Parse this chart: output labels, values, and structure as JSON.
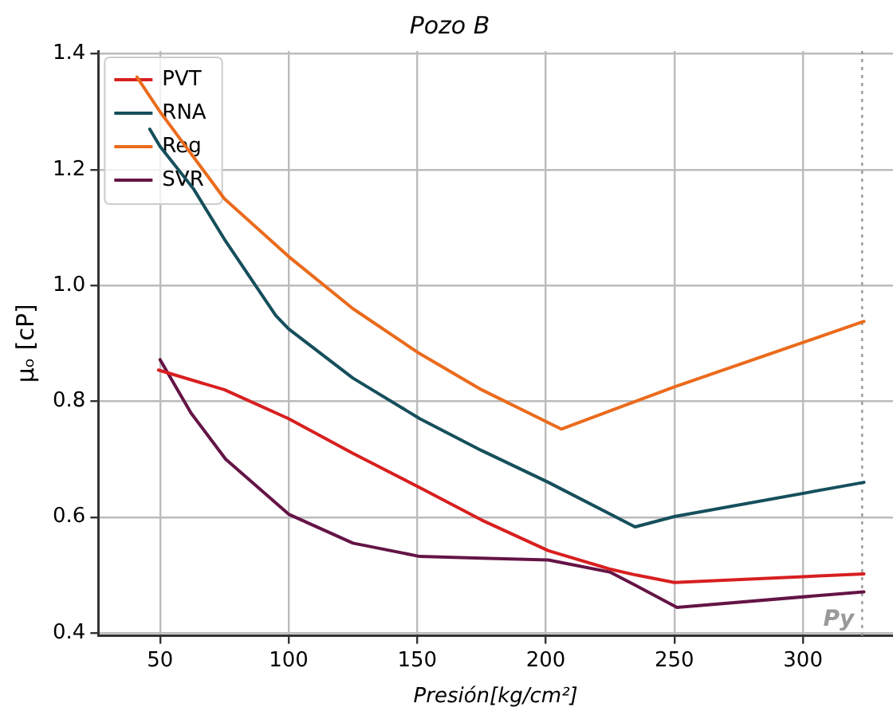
{
  "chart_data": {
    "type": "line",
    "title": "Pozo B",
    "xlabel": "Presión[kg/cm²]",
    "ylabel": "μₒ [cP]",
    "xlim": [
      26,
      335
    ],
    "ylim": [
      0.395,
      1.405
    ],
    "xticks": [
      50,
      100,
      150,
      200,
      250,
      300
    ],
    "yticks": [
      0.4,
      0.6,
      0.8,
      {
        "value": 1,
        "label": "1.0"
      },
      1.2,
      1.4
    ],
    "grid": true,
    "legend": "top left",
    "marker": "none",
    "line_style": "solid",
    "series": [
      {
        "name": "PVT",
        "color": "#d81f1f",
        "x": [
          49.4,
          75,
          100,
          125,
          151,
          175,
          201,
          225,
          235,
          250,
          323.7
        ],
        "values": [
          0.854,
          0.82,
          0.77,
          0.71,
          0.651,
          0.595,
          0.542,
          0.51,
          0.5,
          0.487,
          0.502
        ]
      },
      {
        "name": "RNA",
        "color": "#164f5c",
        "x": [
          46,
          50,
          63,
          75,
          95,
          100,
          125,
          151,
          175,
          201,
          234.7,
          250,
          323.7
        ],
        "values": [
          1.27,
          1.24,
          1.167,
          1.08,
          0.948,
          0.925,
          0.84,
          0.77,
          0.715,
          0.66,
          0.583,
          0.601,
          0.66
        ]
      },
      {
        "name": "Reg",
        "color": "#ea6b1c",
        "x": [
          41,
          50,
          60,
          75,
          100,
          125,
          150,
          175,
          206,
          250,
          323.7
        ],
        "values": [
          1.36,
          1.3,
          1.24,
          1.15,
          1.05,
          0.96,
          0.885,
          0.82,
          0.752,
          0.825,
          0.938
        ]
      },
      {
        "name": "SVR",
        "color": "#641446",
        "x": [
          50,
          62,
          75.5,
          100,
          125,
          151,
          175,
          201,
          225,
          235,
          251,
          323.7
        ],
        "values": [
          0.872,
          0.78,
          0.7,
          0.605,
          0.555,
          0.532,
          0.529,
          0.526,
          0.505,
          0.482,
          0.444,
          0.471
        ]
      }
    ],
    "ref_lines": [
      {
        "axis": "x",
        "value": 323,
        "label": "Py",
        "color": "#999999",
        "line_style": "dotted"
      }
    ]
  }
}
